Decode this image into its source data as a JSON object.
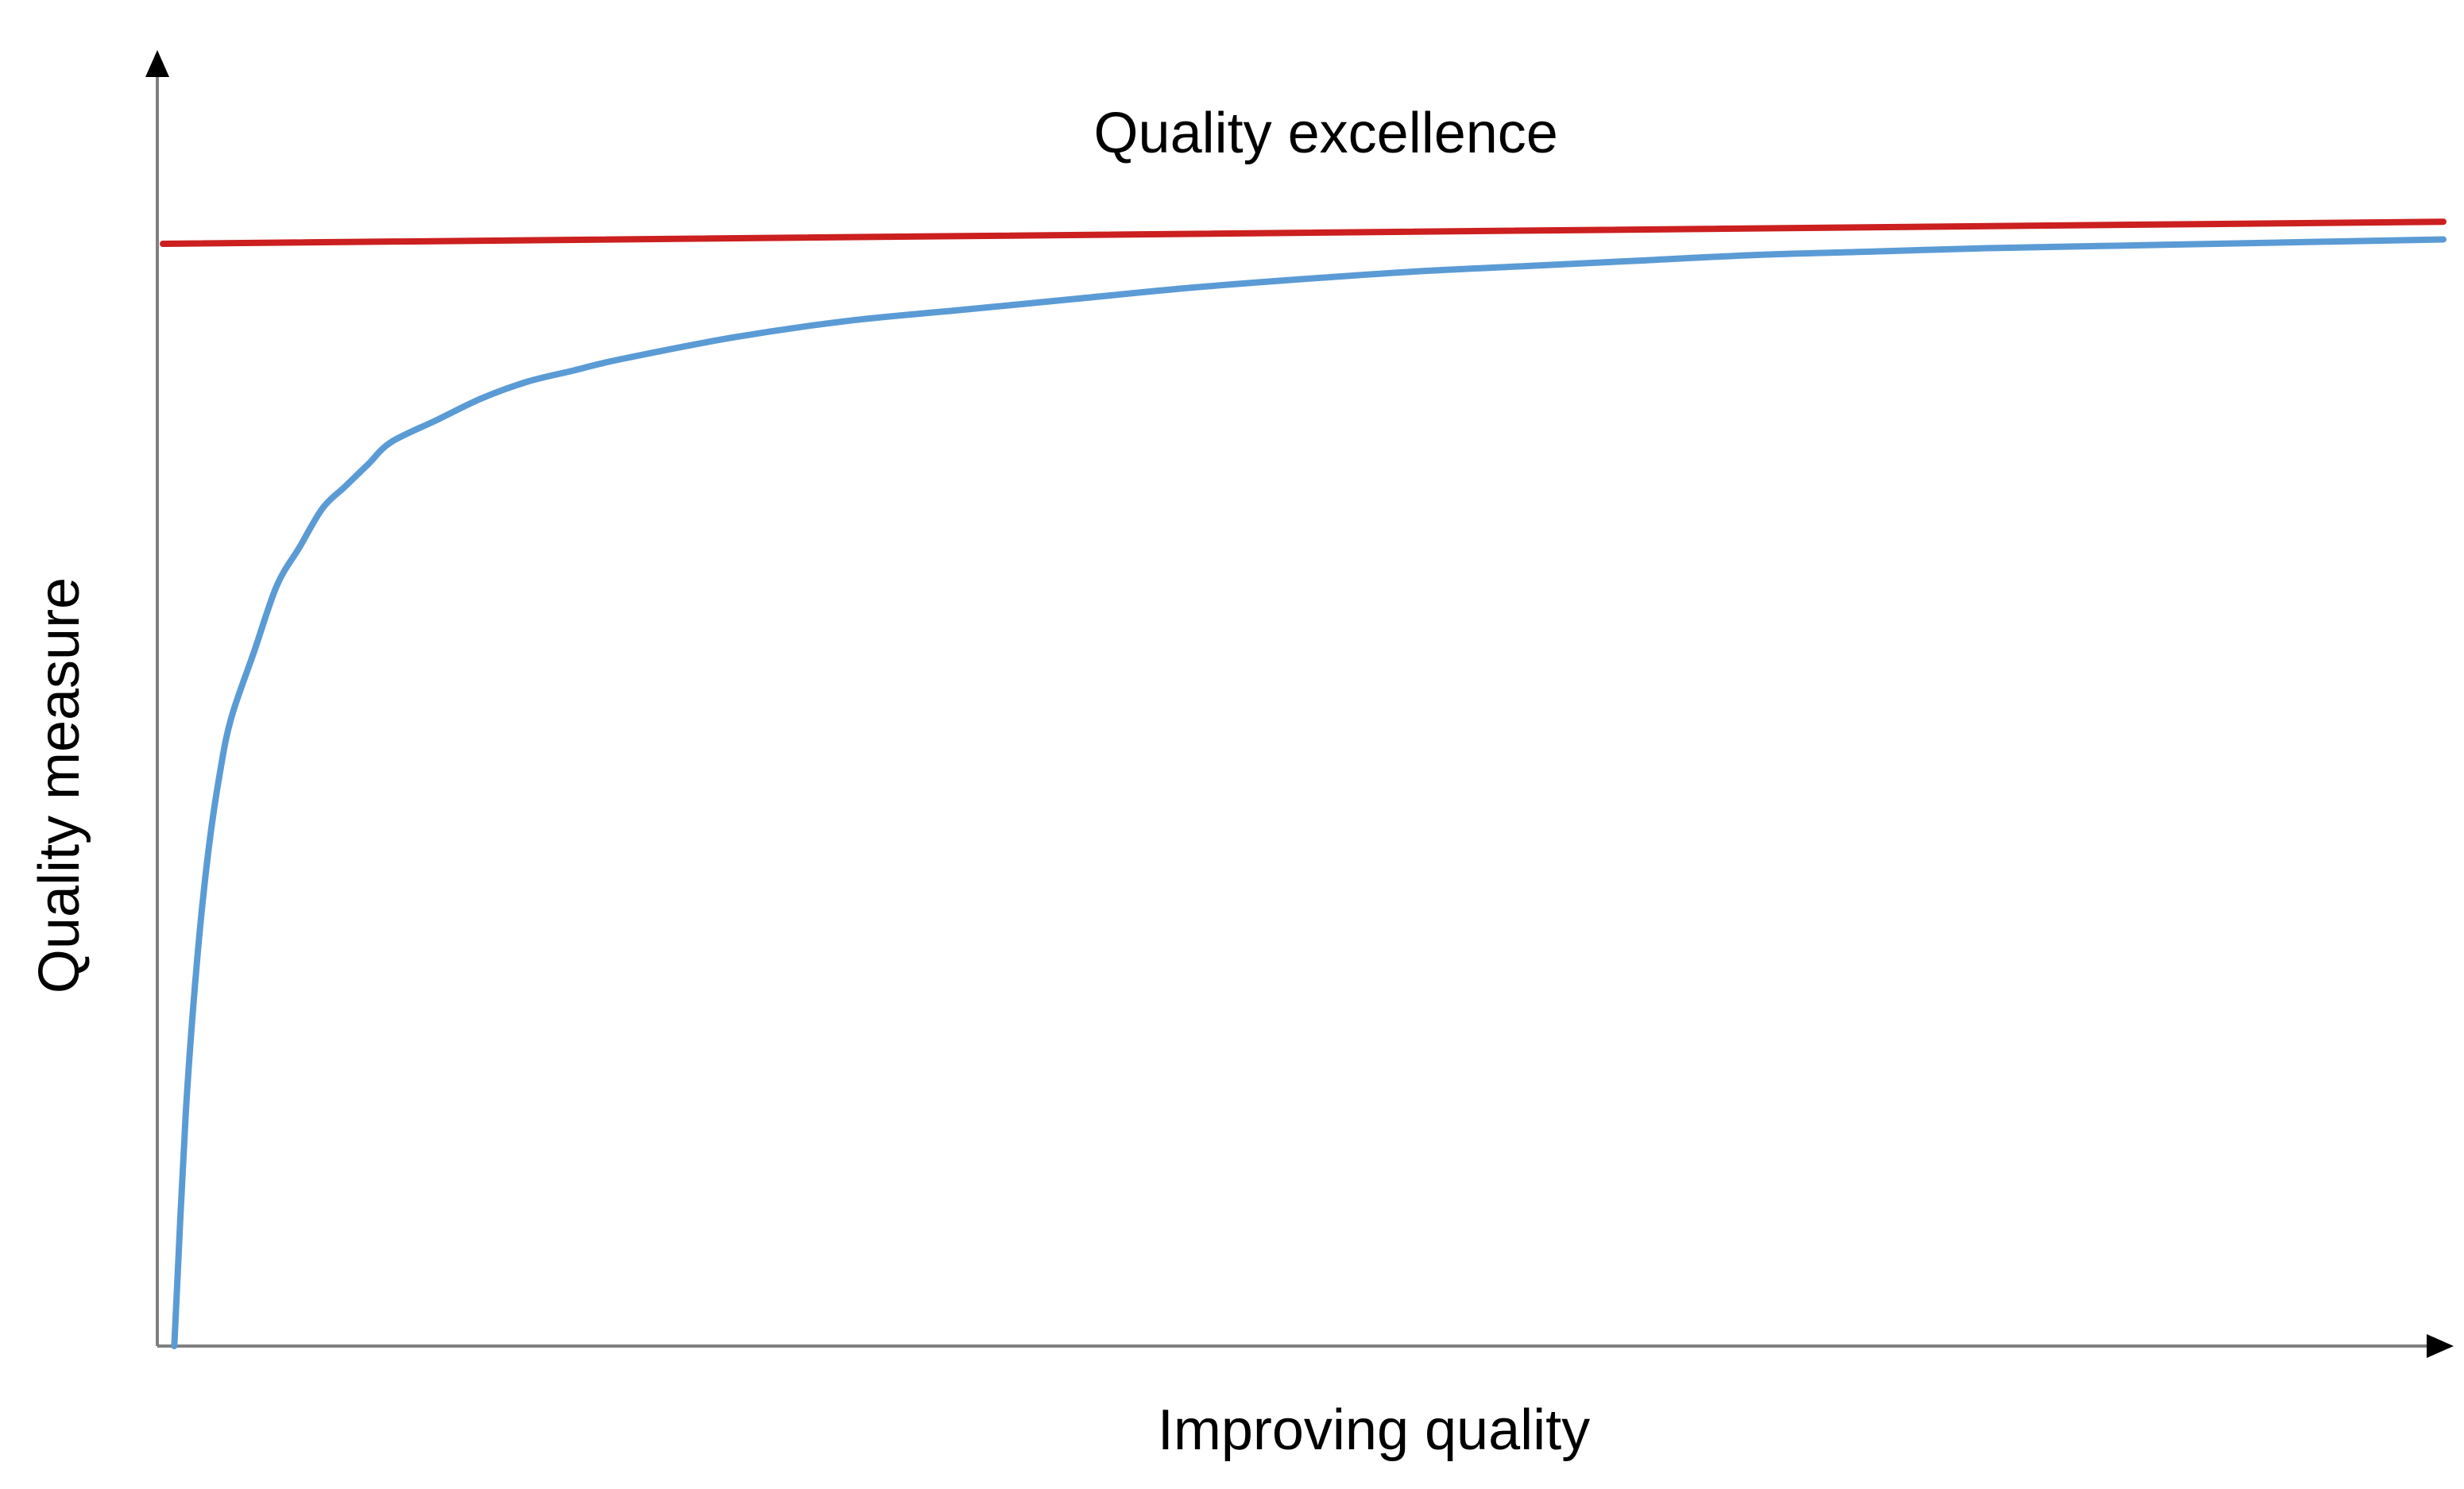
{
  "chart_data": {
    "type": "line",
    "title": "",
    "xlabel": "Improving quality",
    "ylabel": "Quality measure",
    "xlim": [
      0,
      100
    ],
    "ylim": [
      0,
      100
    ],
    "grid": false,
    "axis_color": "#7f7f7f",
    "x_axis_arrow": true,
    "y_axis_arrow": true,
    "annotations": [
      {
        "text": "Quality excellence",
        "x": 51,
        "y": 110
      }
    ],
    "series": [
      {
        "color": "#cc1f1f",
        "x": [
          0,
          100
        ],
        "y": [
          100,
          102
        ]
      },
      {
        "color": "#5b9bd5",
        "x": [
          0.5,
          1,
          1.5,
          2,
          2.5,
          3,
          4,
          5,
          6,
          7,
          8,
          9,
          10,
          12,
          14,
          16,
          18,
          20,
          25,
          30,
          35,
          40,
          45,
          50,
          55,
          60,
          65,
          70,
          75,
          80,
          85,
          90,
          95,
          100
        ],
        "y": [
          0,
          21,
          35,
          45,
          52,
          57,
          63,
          69,
          72.5,
          76,
          78,
          80,
          82,
          84,
          86,
          87.5,
          88.5,
          89.5,
          91.5,
          93,
          94,
          95,
          96,
          96.8,
          97.5,
          98,
          98.5,
          99,
          99.3,
          99.6,
          99.8,
          100,
          100.2,
          100.4
        ]
      }
    ]
  }
}
